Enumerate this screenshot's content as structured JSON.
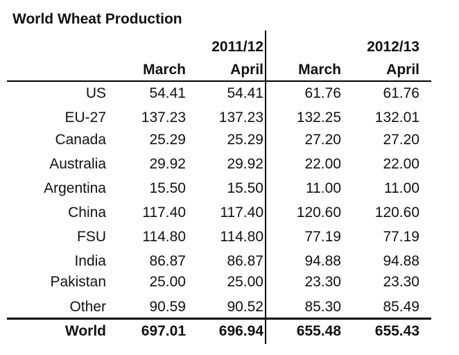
{
  "title": "World Wheat Production",
  "header": {
    "year1": "2011/12",
    "year2": "2012/13",
    "cols": [
      "March",
      "April",
      "March",
      "April"
    ]
  },
  "rows": [
    {
      "label": "US",
      "values": [
        "54.41",
        "54.41",
        "61.76",
        "61.76"
      ]
    },
    {
      "label": "EU-27",
      "values": [
        "137.23",
        "137.23",
        "132.25",
        "132.01"
      ]
    },
    {
      "label": "Canada",
      "values": [
        "25.29",
        "25.29",
        "27.20",
        "27.20"
      ]
    },
    {
      "label": "Australia",
      "values": [
        "29.92",
        "29.92",
        "22.00",
        "22.00"
      ]
    },
    {
      "label": "Argentina",
      "values": [
        "15.50",
        "15.50",
        "11.00",
        "11.00"
      ]
    },
    {
      "label": "China",
      "values": [
        "117.40",
        "117.40",
        "120.60",
        "120.60"
      ]
    },
    {
      "label": "FSU",
      "values": [
        "114.80",
        "114.80",
        "77.19",
        "77.19"
      ]
    },
    {
      "label": "India",
      "values": [
        "86.87",
        "86.87",
        "94.88",
        "94.88"
      ]
    },
    {
      "label": "Pakistan",
      "values": [
        "25.00",
        "25.00",
        "23.30",
        "23.30"
      ]
    },
    {
      "label": "Other",
      "values": [
        "90.59",
        "90.52",
        "85.30",
        "85.49"
      ]
    }
  ],
  "total": {
    "label": "World",
    "values": [
      "697.01",
      "696.94",
      "655.48",
      "655.43"
    ]
  }
}
